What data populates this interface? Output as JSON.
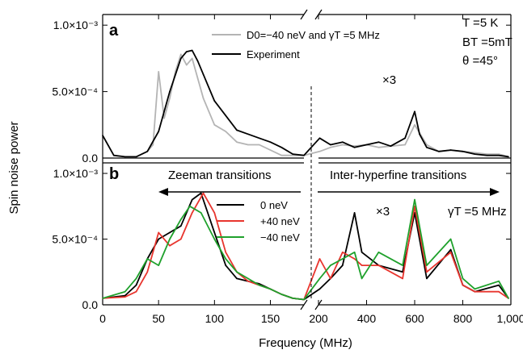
{
  "axes": {
    "xlabel": "Frequency (MHz)",
    "ylabel": "Spin noise power",
    "xticks": [
      "0",
      "50",
      "100",
      "150",
      "200",
      "400",
      "600",
      "800",
      "1,000"
    ],
    "yticks_a": [
      "0.0",
      "5.0×10⁻⁴",
      "1.0×10⁻³"
    ],
    "yticks_b": [
      "0.0",
      "5.0×10⁻⁴",
      "1.0×10⁻³"
    ]
  },
  "panel_a": {
    "letter": "a",
    "legend": [
      "D0=−40 neV and γT =5 MHz",
      "Experiment"
    ],
    "params": [
      "T =5 K",
      "BT =5mT",
      "θ =45°"
    ],
    "mult": "×3"
  },
  "panel_b": {
    "letter": "b",
    "left_label": "Zeeman transitions",
    "right_label": "Inter-hyperfine transitions",
    "legend": [
      "0 neV",
      "+40 neV",
      "−40 neV"
    ],
    "gamma": "γT =5 MHz",
    "mult": "×3"
  },
  "colors": {
    "experiment": "#000000",
    "sim_grey": "#b4b4b4",
    "zero": "#000000",
    "plus": "#e8352e",
    "minus": "#1fa12c"
  },
  "chart_data": [
    {
      "type": "line",
      "panel": "a",
      "xlabel": "Frequency (MHz)",
      "ylabel": "Spin noise power",
      "ylim": [
        0,
        0.001
      ],
      "x_segments": [
        [
          0,
          180
        ],
        [
          200,
          1000
        ]
      ],
      "series": [
        {
          "name": "Experiment",
          "x": [
            0,
            10,
            20,
            30,
            40,
            50,
            60,
            70,
            75,
            80,
            85,
            90,
            100,
            110,
            120,
            130,
            140,
            150,
            160,
            170,
            180,
            205,
            250,
            300,
            350,
            400,
            450,
            500,
            560,
            600,
            620,
            650,
            700,
            750,
            800,
            850,
            900,
            950,
            990
          ],
          "y": [
            0.00017,
            2e-05,
            1e-05,
            1e-05,
            5e-05,
            0.0002,
            0.0005,
            0.00075,
            0.0008,
            0.00081,
            0.00073,
            0.00063,
            0.00043,
            0.00032,
            0.00021,
            0.00018,
            0.00015,
            0.00012,
            8e-05,
            3e-05,
            2e-05,
            0.00015,
            0.0001,
            0.00012,
            8e-05,
            0.0001,
            0.00012,
            9e-05,
            0.00015,
            0.00035,
            0.00018,
            8e-05,
            5e-05,
            6e-05,
            5e-05,
            3e-05,
            2e-05,
            2e-05,
            1e-05
          ]
        },
        {
          "name": "D0=−40 neV and γT =5 MHz",
          "x": [
            40,
            45,
            50,
            55,
            60,
            65,
            70,
            75,
            80,
            85,
            90,
            95,
            100,
            110,
            120,
            130,
            140,
            160,
            180,
            205,
            250,
            300,
            350,
            400,
            450,
            500,
            560,
            600,
            650,
            700,
            750,
            800,
            850,
            900,
            950,
            990
          ],
          "y": [
            5e-05,
            0.0001,
            0.00065,
            0.0003,
            0.00045,
            0.00065,
            0.00078,
            0.0007,
            0.00075,
            0.0006,
            0.00045,
            0.00035,
            0.00025,
            0.0002,
            0.00012,
            0.0001,
            0.0001,
            2e-05,
            2e-05,
            5e-05,
            8e-05,
            0.0001,
            9e-05,
            0.0001,
            8e-05,
            9e-05,
            0.0001,
            0.00025,
            0.0001,
            5e-05,
            6e-05,
            5e-05,
            4e-05,
            3e-05,
            3e-05,
            1e-05
          ]
        }
      ]
    },
    {
      "type": "line",
      "panel": "b",
      "xlabel": "Frequency (MHz)",
      "ylabel": "Spin noise power",
      "ylim": [
        0,
        0.001
      ],
      "x_segments": [
        [
          0,
          180
        ],
        [
          200,
          1000
        ]
      ],
      "series": [
        {
          "name": "0 neV",
          "x": [
            0,
            20,
            30,
            40,
            50,
            60,
            70,
            80,
            88,
            100,
            110,
            120,
            130,
            140,
            150,
            160,
            170,
            180,
            205,
            250,
            300,
            350,
            380,
            450,
            550,
            600,
            650,
            750,
            800,
            850,
            950,
            990
          ],
          "y": [
            5e-05,
            7e-05,
            0.00015,
            0.00035,
            0.0005,
            0.00055,
            0.0006,
            0.0008,
            0.00085,
            0.00055,
            0.0003,
            0.0002,
            0.00018,
            0.00016,
            0.00012,
            8e-05,
            5e-05,
            4e-05,
            0.00012,
            0.0002,
            0.0003,
            0.0007,
            0.0004,
            0.0003,
            0.00025,
            0.0007,
            0.0002,
            0.00042,
            0.00015,
            0.0001,
            0.00015,
            5e-05
          ]
        },
        {
          "name": "+40 neV",
          "x": [
            0,
            20,
            30,
            40,
            50,
            60,
            70,
            80,
            90,
            100,
            110,
            120,
            130,
            140,
            150,
            160,
            170,
            180,
            205,
            250,
            300,
            350,
            380,
            450,
            550,
            600,
            650,
            750,
            800,
            850,
            950,
            990
          ],
          "y": [
            5e-05,
            6e-05,
            0.0001,
            0.00025,
            0.00055,
            0.00045,
            0.0005,
            0.0007,
            0.00085,
            0.0007,
            0.0004,
            0.00025,
            0.00018,
            0.00015,
            0.00012,
            8e-05,
            5e-05,
            4e-05,
            0.00035,
            0.0002,
            0.0004,
            0.00035,
            0.0003,
            0.0003,
            0.0002,
            0.00075,
            0.00025,
            0.0004,
            0.00015,
            0.0001,
            0.0001,
            5e-05
          ]
        },
        {
          "name": "−40 neV",
          "x": [
            0,
            20,
            30,
            40,
            50,
            60,
            70,
            78,
            88,
            100,
            110,
            120,
            130,
            140,
            150,
            160,
            170,
            180,
            205,
            250,
            300,
            350,
            380,
            450,
            550,
            600,
            650,
            750,
            800,
            850,
            950,
            990
          ],
          "y": [
            5e-05,
            0.0001,
            0.0002,
            0.00035,
            0.0003,
            0.0005,
            0.00065,
            0.00075,
            0.0007,
            0.0005,
            0.00035,
            0.00025,
            0.0002,
            0.00015,
            0.00012,
            8e-05,
            5e-05,
            4e-05,
            0.0002,
            0.0003,
            0.00035,
            0.0004,
            0.0002,
            0.0004,
            0.0003,
            0.0008,
            0.0003,
            0.0005,
            0.0002,
            0.00012,
            0.00018,
            5e-05
          ]
        }
      ]
    }
  ]
}
